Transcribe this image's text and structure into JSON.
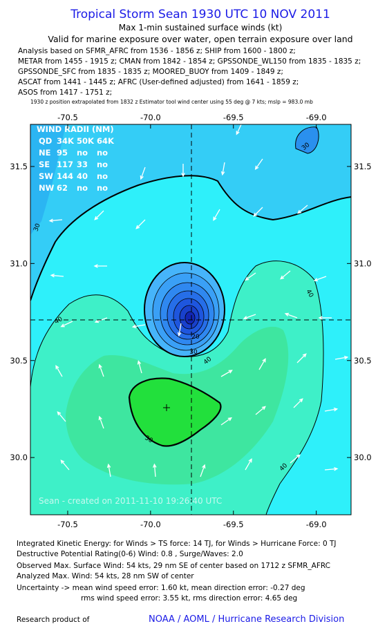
{
  "header": {
    "title": "Tropical Storm Sean 1930 UTC 10 NOV 2011",
    "subtitle": "Max 1-min sustained surface winds (kt)",
    "validity": "Valid for marine exposure over water, open terrain exposure over land",
    "sources": [
      "Analysis based on SFMR_AFRC from 1536 - 1856 z; SHIP from 1600 - 1800 z;",
      "METAR from 1455 - 1915 z; CMAN from 1842 - 1854 z; GPSSONDE_WL150 from 1835 - 1835 z;",
      "GPSSONDE_SFC from 1835 - 1835 z; MOORED_BUOY from 1409 - 1849 z;",
      "ASCAT from 1441 - 1445 z; AFRC (User-defined adjusted) from 1641 - 1859 z;",
      "ASOS from 1417 - 1751 z;"
    ],
    "position_note": "1930 z position extrapolated from 1832 z Estimator tool wind center using 55 deg @ 7 kts; mslp = 983.0 mb"
  },
  "map": {
    "xlim": [
      -70.725,
      -68.79
    ],
    "ylim": [
      29.705,
      31.717
    ],
    "xticks": [
      -70.5,
      {
        "value": -70,
        "label": "-70.0"
      },
      -69.5,
      {
        "value": -69,
        "label": "-69.0"
      }
    ],
    "yticks": [
      {
        "value": 30,
        "label": "30.0"
      },
      30.5,
      {
        "value": 31,
        "label": "31.0"
      },
      31.5
    ],
    "wind_radii": {
      "title": "WIND RADII (NM)",
      "rows": [
        [
          "QD",
          "34K",
          "50K",
          "64K"
        ],
        [
          "NE",
          "95",
          "no",
          "no"
        ],
        [
          "SE",
          "117",
          "33",
          "no"
        ],
        [
          "SW",
          "144",
          "40",
          "no"
        ],
        [
          "NW",
          "62",
          "no",
          "no"
        ]
      ]
    },
    "contour_labels": [
      "30",
      "30",
      "40",
      "40",
      "40",
      "40",
      "30",
      "20",
      "30"
    ],
    "watermark": "Sean - created on 2011-11-10 19:26:40 UTC"
  },
  "footer": {
    "lines": [
      "Integrated Kinetic Energy:  for Winds > TS force: 14 TJ,  for Winds > Hurricane Force: 0 TJ",
      "Destructive Potential Rating(0-6)   Wind: 0.8 , Surge/Waves: 2.0",
      "Observed Max. Surface Wind: 54 kts, 29 nm SE of center based on 1712 z SFMR_AFRC",
      "Analyzed Max. Wind: 54 kts, 28 nm SW of center",
      "Uncertainty -> mean wind speed error: 1.60 kt,   mean direction error:  -0.27 deg",
      "rms wind speed error: 3.55 kt,   rms direction error: 4.65 deg"
    ],
    "research": "Research product of",
    "org": "NOAA / AOML / Hurricane Research Division"
  }
}
